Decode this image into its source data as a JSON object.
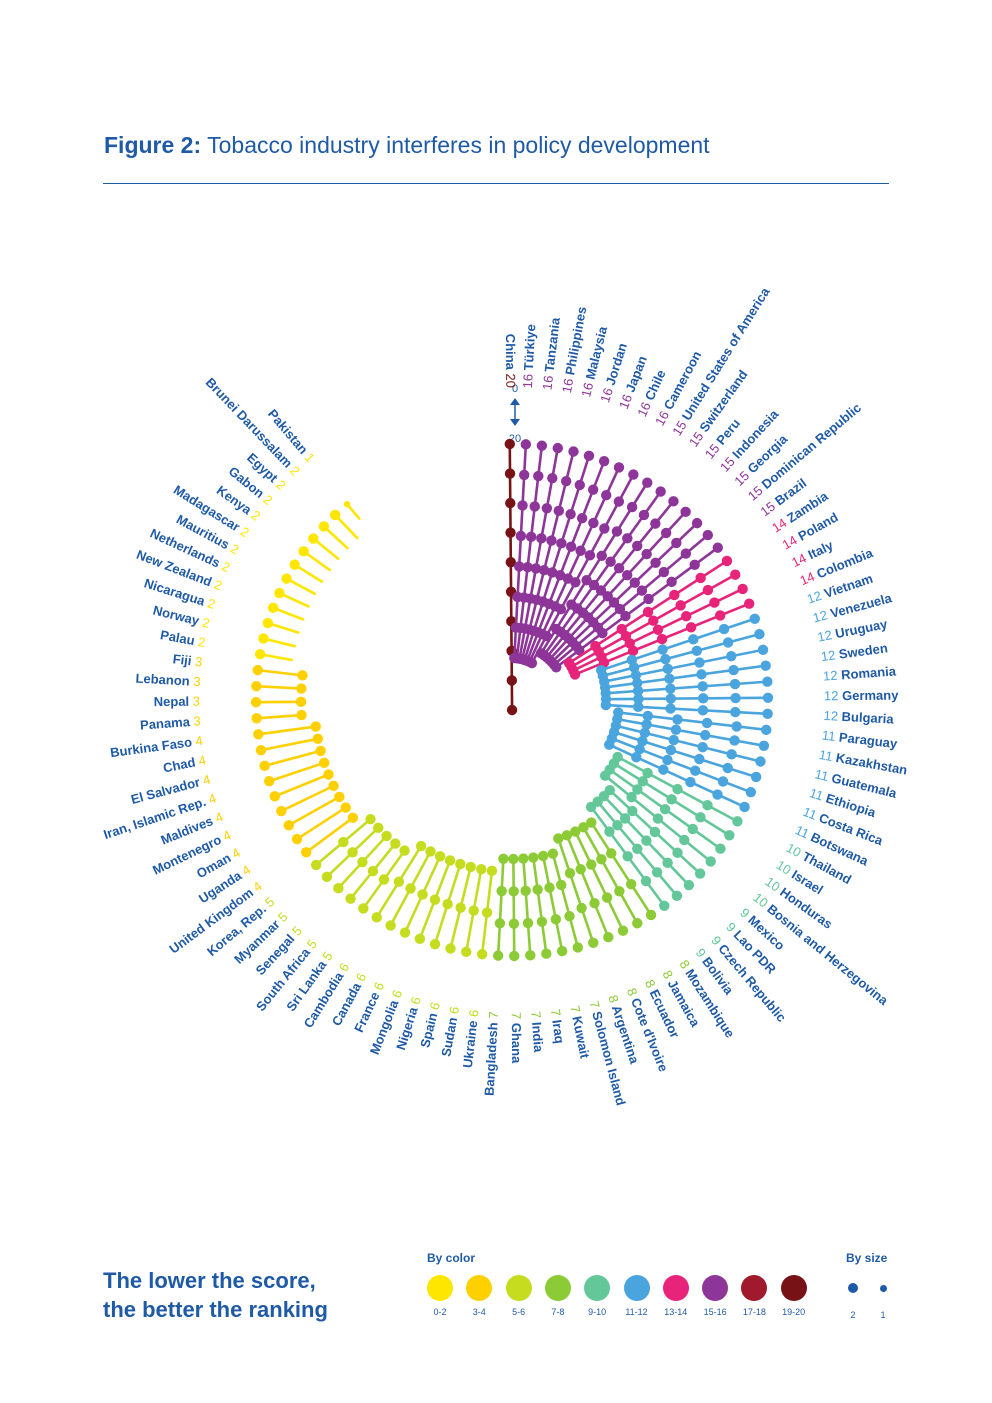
{
  "figure": {
    "title_prefix": "Figure 2:",
    "title_text": "Tobacco industry interferes in policy development"
  },
  "scale_indicator": {
    "top": "0",
    "bottom": "20"
  },
  "tagline": {
    "line1": "The lower the score,",
    "line2": "the better the ranking"
  },
  "legend": {
    "color_heading": "By color",
    "size_heading": "By size",
    "color_bins": [
      {
        "label": "0-2",
        "color": "#FFE600"
      },
      {
        "label": "3-4",
        "color": "#FFD000"
      },
      {
        "label": "5-6",
        "color": "#C5DC1F"
      },
      {
        "label": "7-8",
        "color": "#8CCB36"
      },
      {
        "label": "9-10",
        "color": "#63C79A"
      },
      {
        "label": "11-12",
        "color": "#4AA4DD"
      },
      {
        "label": "13-14",
        "color": "#E8237A"
      },
      {
        "label": "15-16",
        "color": "#8E3599"
      },
      {
        "label": "17-18",
        "color": "#A0192C"
      },
      {
        "label": "19-20",
        "color": "#771316"
      }
    ],
    "size_items": [
      {
        "label": "2",
        "diameter": 10
      },
      {
        "label": "1",
        "diameter": 7
      }
    ]
  },
  "colors": {
    "label_text": "#1f5aa6",
    "title": "#1f5aa6"
  },
  "chart_data": {
    "type": "radial-lollipop",
    "title": "Tobacco industry interferes in policy development",
    "value_range": [
      0,
      20
    ],
    "series": [
      {
        "country": "China",
        "score": 20
      },
      {
        "country": "Türkiye",
        "score": 16
      },
      {
        "country": "Tanzania",
        "score": 16
      },
      {
        "country": "Philippines",
        "score": 16
      },
      {
        "country": "Malaysia",
        "score": 16
      },
      {
        "country": "Jordan",
        "score": 16
      },
      {
        "country": "Japan",
        "score": 16
      },
      {
        "country": "Chile",
        "score": 16
      },
      {
        "country": "Cameroon",
        "score": 16
      },
      {
        "country": "United States of America",
        "score": 15
      },
      {
        "country": "Switzerland",
        "score": 15
      },
      {
        "country": "Peru",
        "score": 15
      },
      {
        "country": "Indonesia",
        "score": 15
      },
      {
        "country": "Georgia",
        "score": 15
      },
      {
        "country": "Dominican Republic",
        "score": 15
      },
      {
        "country": "Brazil",
        "score": 15
      },
      {
        "country": "Zambia",
        "score": 14
      },
      {
        "country": "Poland",
        "score": 14
      },
      {
        "country": "Italy",
        "score": 14
      },
      {
        "country": "Colombia",
        "score": 14
      },
      {
        "country": "Vietnam",
        "score": 12
      },
      {
        "country": "Venezuela",
        "score": 12
      },
      {
        "country": "Uruguay",
        "score": 12
      },
      {
        "country": "Sweden",
        "score": 12
      },
      {
        "country": "Romania",
        "score": 12
      },
      {
        "country": "Germany",
        "score": 12
      },
      {
        "country": "Bulgaria",
        "score": 12
      },
      {
        "country": "Paraguay",
        "score": 11
      },
      {
        "country": "Kazakhstan",
        "score": 11
      },
      {
        "country": "Guatemala",
        "score": 11
      },
      {
        "country": "Ethiopia",
        "score": 11
      },
      {
        "country": "Costa Rica",
        "score": 11
      },
      {
        "country": "Botswana",
        "score": 11
      },
      {
        "country": "Thailand",
        "score": 10
      },
      {
        "country": "Israel",
        "score": 10
      },
      {
        "country": "Honduras",
        "score": 10
      },
      {
        "country": "Bosnia and Herzegovina",
        "score": 10
      },
      {
        "country": "Mexico",
        "score": 9
      },
      {
        "country": "Lao PDR",
        "score": 9
      },
      {
        "country": "Czech Republic",
        "score": 9
      },
      {
        "country": "Bolivia",
        "score": 9
      },
      {
        "country": "Mozambique",
        "score": 8
      },
      {
        "country": "Jamaica",
        "score": 8
      },
      {
        "country": "Ecuador",
        "score": 8
      },
      {
        "country": "Cote d'Ivoire",
        "score": 8
      },
      {
        "country": "Argentina",
        "score": 8
      },
      {
        "country": "Solomon Island",
        "score": 7
      },
      {
        "country": "Kuwait",
        "score": 7
      },
      {
        "country": "Iraq",
        "score": 7
      },
      {
        "country": "India",
        "score": 7
      },
      {
        "country": "Ghana",
        "score": 7
      },
      {
        "country": "Bangladesh",
        "score": 7
      },
      {
        "country": "Ukraine",
        "score": 6
      },
      {
        "country": "Sudan",
        "score": 6
      },
      {
        "country": "Spain",
        "score": 6
      },
      {
        "country": "Nigeria",
        "score": 6
      },
      {
        "country": "Mongolia",
        "score": 6
      },
      {
        "country": "France",
        "score": 6
      },
      {
        "country": "Canada",
        "score": 6
      },
      {
        "country": "Cambodia",
        "score": 6
      },
      {
        "country": "Sri Lanka",
        "score": 5
      },
      {
        "country": "South Africa",
        "score": 5
      },
      {
        "country": "Senegal",
        "score": 5
      },
      {
        "country": "Myanmar",
        "score": 5
      },
      {
        "country": "Korea, Rep.",
        "score": 5
      },
      {
        "country": "United Kingdom",
        "score": 4
      },
      {
        "country": "Uganda",
        "score": 4
      },
      {
        "country": "Oman",
        "score": 4
      },
      {
        "country": "Montenegro",
        "score": 4
      },
      {
        "country": "Maldives",
        "score": 4
      },
      {
        "country": "Iran, Islamic Rep.",
        "score": 4
      },
      {
        "country": "El Salvador",
        "score": 4
      },
      {
        "country": "Chad",
        "score": 4
      },
      {
        "country": "Burkina Faso",
        "score": 4
      },
      {
        "country": "Panama",
        "score": 3
      },
      {
        "country": "Nepal",
        "score": 3
      },
      {
        "country": "Lebanon",
        "score": 3
      },
      {
        "country": "Fiji",
        "score": 3
      },
      {
        "country": "Palau",
        "score": 2
      },
      {
        "country": "Norway",
        "score": 2
      },
      {
        "country": "Nicaragua",
        "score": 2
      },
      {
        "country": "New Zealand",
        "score": 2
      },
      {
        "country": "Netherlands",
        "score": 2
      },
      {
        "country": "Mauritius",
        "score": 2
      },
      {
        "country": "Madagascar",
        "score": 2
      },
      {
        "country": "Kenya",
        "score": 2
      },
      {
        "country": "Gabon",
        "score": 2
      },
      {
        "country": "Egypt",
        "score": 2
      },
      {
        "country": "Brunei Darussalam",
        "score": 2
      },
      {
        "country": "Pakistan",
        "score": 1
      }
    ]
  }
}
